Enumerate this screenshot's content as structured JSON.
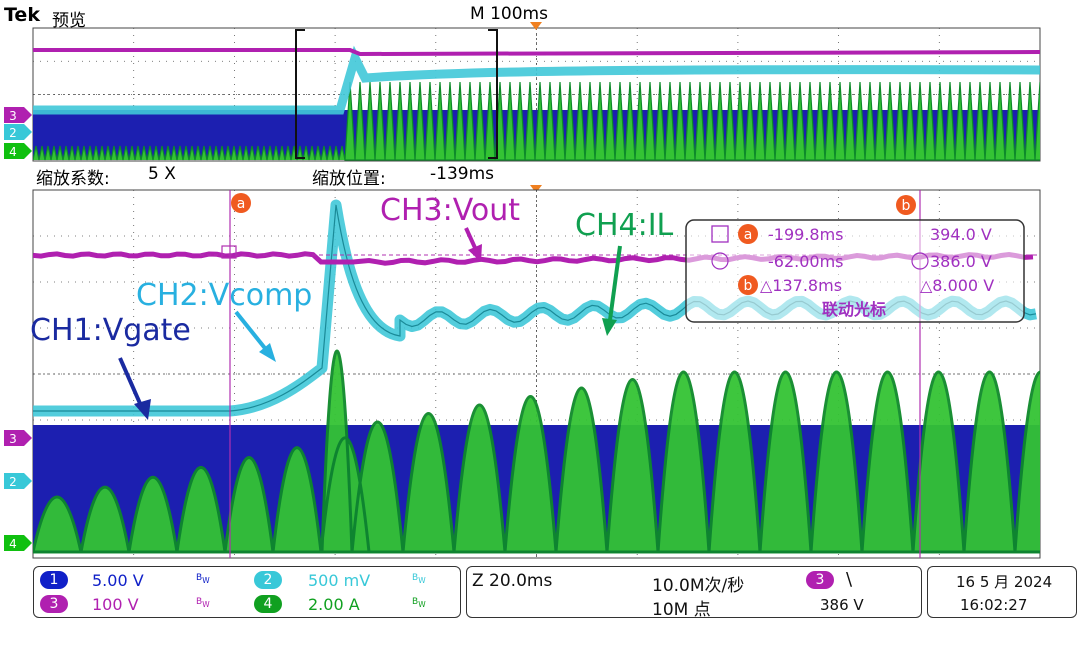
{
  "header": {
    "brand": "Tek",
    "mode": "预览",
    "timebase": "M 100ms"
  },
  "zoom": {
    "factor_label": "缩放系数:",
    "factor_value": "5 X",
    "position_label": "缩放位置:",
    "position_value": "-139ms"
  },
  "colors": {
    "ch1": "#1020c8",
    "ch2": "#38c8d8",
    "ch3": "#b020b0",
    "ch4": "#10c010",
    "orange": "#f08020",
    "cursor": "#b030b0",
    "cursor_readout": "#a030c0"
  },
  "chart_data": {
    "type": "line",
    "title": "",
    "xlabel": "",
    "ylabel": "",
    "series": [
      {
        "name": "CH1:Vgate",
        "channel": 1
      },
      {
        "name": "CH2:Vcomp",
        "channel": 2
      },
      {
        "name": "CH3:Vout",
        "channel": 3
      },
      {
        "name": "CH4:IL",
        "channel": 4
      }
    ],
    "annotations": [
      "CH1:Vgate",
      "CH2:Vcomp",
      "CH3:Vout",
      "CH4:IL"
    ],
    "grid": true
  },
  "cursor_readout": {
    "a_time": "-199.8ms",
    "a_volt": "394.0 V",
    "b_time": "-62.00ms",
    "b_volt": "386.0 V",
    "delta_time": "△137.8ms",
    "delta_volt": "△8.000 V",
    "linked": "联动光标"
  },
  "channels": [
    {
      "num": "1",
      "scale": "5.00 V",
      "bw": "B",
      "bw_sub": "W"
    },
    {
      "num": "2",
      "scale": "500 mV",
      "bw": "B",
      "bw_sub": "W"
    },
    {
      "num": "3",
      "scale": "100 V",
      "bw": "B",
      "bw_sub": "W"
    },
    {
      "num": "4",
      "scale": "2.00 A",
      "bw": "B",
      "bw_sub": "W"
    }
  ],
  "acquisition": {
    "zoom_time": "Z 20.0ms",
    "sample_rate": "10.0M次/秒",
    "record": "10M 点"
  },
  "trigger": {
    "channel": "3",
    "slope": "\\",
    "level": "386 V"
  },
  "datetime": {
    "date": "16 5 月 2024",
    "time": "16:02:27"
  },
  "markers": {
    "a": "a",
    "b": "b"
  }
}
